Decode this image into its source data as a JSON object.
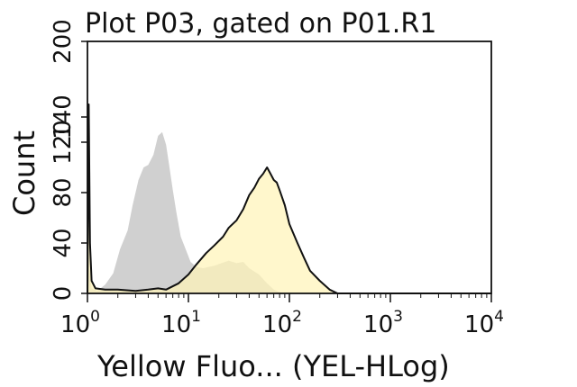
{
  "chart_data": {
    "type": "area",
    "title": "Plot P03, gated on P01.R1",
    "xlabel": "Yellow Fluo... (YEL-HLog)",
    "ylabel": "Count",
    "x_scale": "log",
    "xlim": [
      1,
      10000
    ],
    "ylim": [
      0,
      200
    ],
    "x_ticks": [
      {
        "base": "10",
        "exp": "0",
        "value": 1
      },
      {
        "base": "10",
        "exp": "1",
        "value": 10
      },
      {
        "base": "10",
        "exp": "2",
        "value": 100
      },
      {
        "base": "10",
        "exp": "3",
        "value": 1000
      },
      {
        "base": "10",
        "exp": "4",
        "value": 10000
      }
    ],
    "y_ticks": [
      "0",
      "40",
      "80",
      "120",
      "140",
      "200"
    ],
    "y_tick_values": [
      0,
      40,
      80,
      120,
      140,
      200
    ],
    "grid": false,
    "series": [
      {
        "fill": "#d0d0d0",
        "stroke": "none",
        "x": [
          1.0,
          1.04,
          1.1,
          1.25,
          1.5,
          1.8,
          2.1,
          2.5,
          2.8,
          3.2,
          3.6,
          4.0,
          4.5,
          5.0,
          5.5,
          6.0,
          6.5,
          7.0,
          7.6,
          8.4,
          9.5,
          10.5,
          12.0,
          14.0,
          18.0,
          25.0,
          30.0,
          35.0,
          40.0,
          50.0,
          60.0,
          70.0,
          80.0,
          90.0
        ],
        "y": [
          128,
          20,
          4,
          2,
          7,
          16,
          35,
          50,
          70,
          90,
          100,
          102,
          110,
          125,
          128,
          118,
          100,
          82,
          64,
          45,
          34,
          25,
          21,
          20,
          22,
          26,
          24,
          25,
          20,
          15,
          8,
          3,
          1,
          0
        ]
      },
      {
        "fill": "#fff4b8",
        "stroke": "#111111",
        "x": [
          1.0,
          1.03,
          1.06,
          1.1,
          1.2,
          1.5,
          2.0,
          3.0,
          4.0,
          5.0,
          6.0,
          8.0,
          10.0,
          12.0,
          15.0,
          18.0,
          22.0,
          25.0,
          30.0,
          35.0,
          40.0,
          45.0,
          50.0,
          55.0,
          60.0,
          65.0,
          70.0,
          75.0,
          80.0,
          90.0,
          100.0,
          120.0,
          140.0,
          160.0,
          200.0,
          250.0,
          300.0,
          10000.0
        ],
        "y": [
          0,
          150,
          40,
          10,
          4,
          3,
          3,
          2,
          3,
          4,
          3,
          8,
          15,
          23,
          32,
          38,
          45,
          52,
          58,
          67,
          78,
          84,
          91,
          95,
          100,
          95,
          90,
          88,
          82,
          70,
          55,
          40,
          28,
          18,
          10,
          3,
          0,
          0
        ]
      }
    ]
  }
}
